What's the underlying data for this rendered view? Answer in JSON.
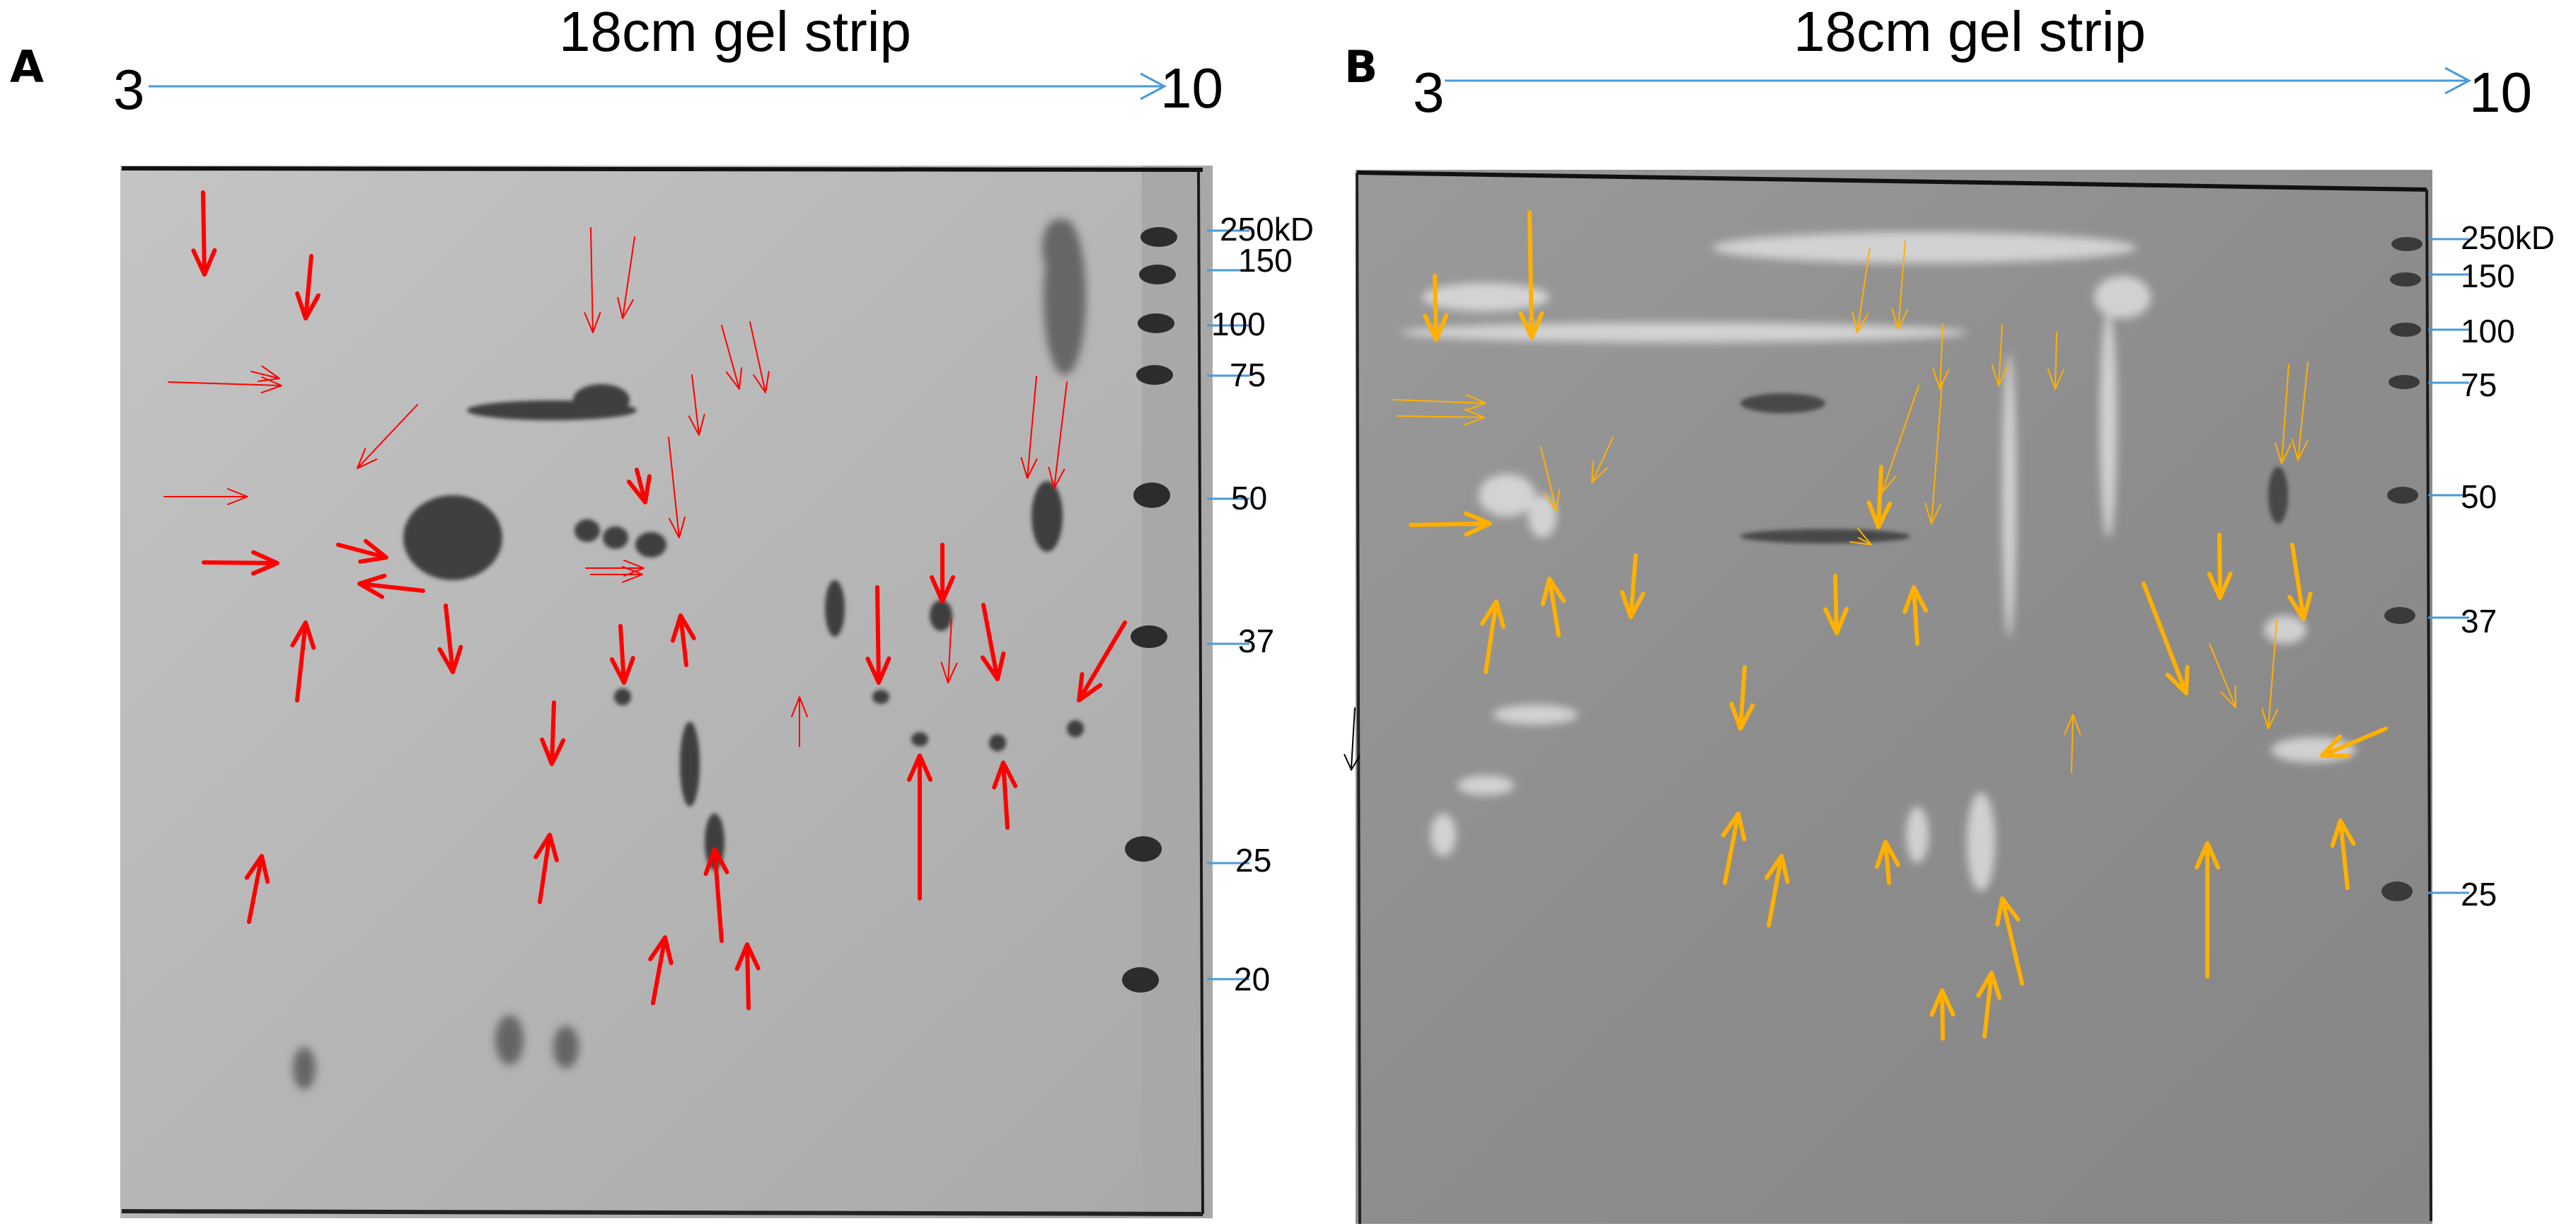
{
  "panels": [
    {
      "id": "A",
      "letter": "A",
      "strip_title": "18cm gel strip",
      "ph_start": "3",
      "ph_end": "10",
      "arrow_color": "#ff0000",
      "gel_style": "dark-spots-on-light",
      "mw_markers": [
        "250kD",
        "150",
        "100",
        "75",
        "50",
        "37",
        "25",
        "20"
      ]
    },
    {
      "id": "B",
      "letter": "B",
      "strip_title": "18cm gel strip",
      "ph_start": "3",
      "ph_end": "10",
      "arrow_color": "#ffb000",
      "gel_style": "light-spots-on-grey",
      "mw_markers": [
        "250kD",
        "150",
        "100",
        "75",
        "50",
        "37",
        "25"
      ]
    }
  ],
  "colors": {
    "axis_line": "#4a9ad8",
    "marker_tick": "#4a9ad8",
    "gel_a_background": "#b8b8b8",
    "gel_b_background": "#8e8e8e"
  }
}
